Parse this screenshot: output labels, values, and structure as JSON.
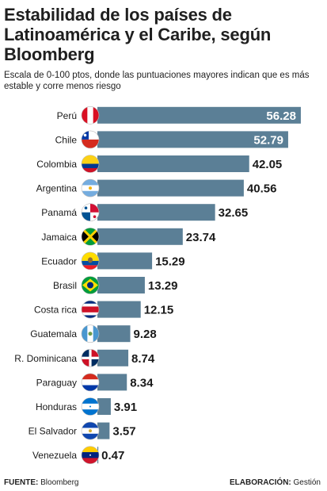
{
  "title": "Estabilidad de los países de Latinoamérica y el Caribe, según Bloomberg",
  "subtitle": "Escala de 0-100 ptos, donde las puntuaciones mayores indican que es más estable y corre menos riesgo",
  "footer": {
    "source_label": "FUENTE:",
    "source_value": "Bloomberg",
    "credit_label": "ELABORACIÓN:",
    "credit_value": "Gestión"
  },
  "colors": {
    "bar": "#5b7f96",
    "bar_label_inside": "#ffffff",
    "bar_label_outside": "#1a1a1a",
    "axis": "#444444"
  },
  "chart_data": {
    "type": "bar",
    "orientation": "horizontal",
    "xlim": [
      0,
      60
    ],
    "x_ticks": [
      0,
      10,
      20,
      30,
      40,
      50,
      60
    ],
    "categories": [
      "Perú",
      "Chile",
      "Colombia",
      "Argentina",
      "Panamá",
      "Jamaica",
      "Ecuador",
      "Brasil",
      "Costa rica",
      "Guatemala",
      "R. Dominicana",
      "Paraguay",
      "Honduras",
      "El Salvador",
      "Venezuela"
    ],
    "values": [
      56.28,
      52.79,
      42.05,
      40.56,
      32.65,
      23.74,
      15.29,
      13.29,
      12.15,
      9.28,
      8.74,
      8.34,
      3.91,
      3.57,
      0.47
    ],
    "value_labels": [
      "56.28",
      "52.79",
      "42.05",
      "40.56",
      "32.65",
      "23.74",
      "15.29",
      "13.29",
      "12.15",
      "9.28",
      "8.74",
      "8.34",
      "3.91",
      "3.57",
      "0.47"
    ],
    "flag_icons": [
      "peru-flag-icon",
      "chile-flag-icon",
      "colombia-flag-icon",
      "argentina-flag-icon",
      "panama-flag-icon",
      "jamaica-flag-icon",
      "ecuador-flag-icon",
      "brazil-flag-icon",
      "costa-rica-flag-icon",
      "guatemala-flag-icon",
      "dominican-republic-flag-icon",
      "paraguay-flag-icon",
      "honduras-flag-icon",
      "el-salvador-flag-icon",
      "venezuela-flag-icon"
    ],
    "grid": false
  }
}
